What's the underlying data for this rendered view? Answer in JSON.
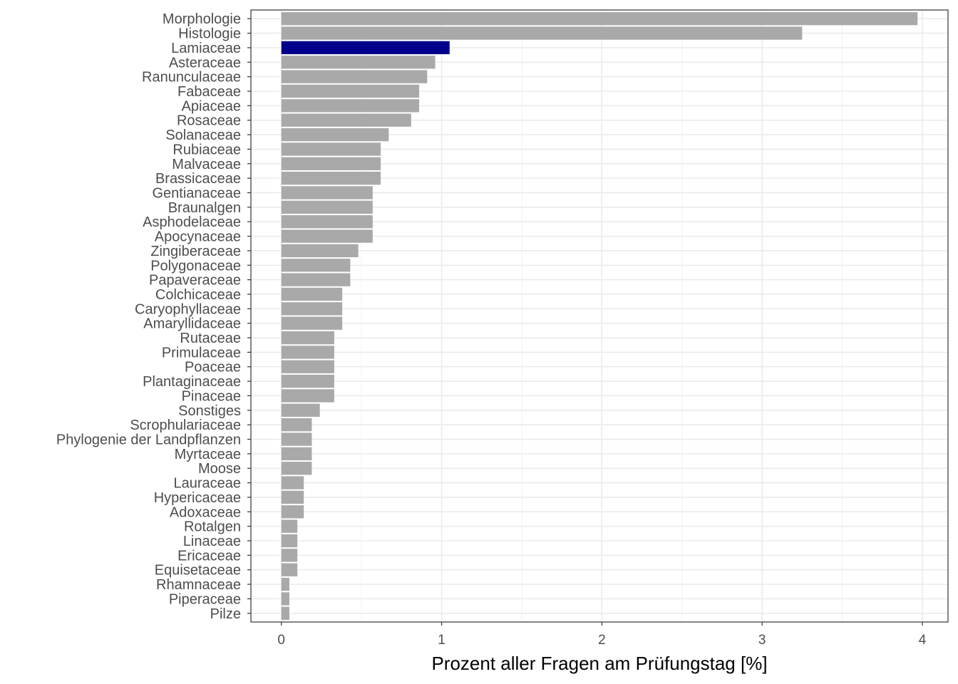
{
  "chart_data": {
    "type": "bar",
    "orientation": "horizontal",
    "xlabel": "Prozent aller Fragen am Prüfungstag [%]",
    "ylabel": "",
    "xlim": [
      -0.19,
      4.16
    ],
    "xticks": [
      0,
      1,
      2,
      3,
      4
    ],
    "grid": true,
    "bar_color": "#a9a9a9",
    "highlight_color": "#00008b",
    "highlight_category": "Lamiaceae",
    "categories": [
      "Morphologie",
      "Histologie",
      "Lamiaceae",
      "Asteraceae",
      "Ranunculaceae",
      "Fabaceae",
      "Apiaceae",
      "Rosaceae",
      "Solanaceae",
      "Rubiaceae",
      "Malvaceae",
      "Brassicaceae",
      "Gentianaceae",
      "Braunalgen",
      "Asphodelaceae",
      "Apocynaceae",
      "Zingiberaceae",
      "Polygonaceae",
      "Papaveraceae",
      "Colchicaceae",
      "Caryophyllaceae",
      "Amaryllidaceae",
      "Rutaceae",
      "Primulaceae",
      "Poaceae",
      "Plantaginaceae",
      "Pinaceae",
      "Sonstiges",
      "Scrophulariaceae",
      "Phylogenie der Landpflanzen",
      "Myrtaceae",
      "Moose",
      "Lauraceae",
      "Hypericaceae",
      "Adoxaceae",
      "Rotalgen",
      "Linaceae",
      "Ericaceae",
      "Equisetaceae",
      "Rhamnaceae",
      "Piperaceae",
      "Pilze"
    ],
    "values": [
      3.97,
      3.25,
      1.05,
      0.96,
      0.91,
      0.86,
      0.86,
      0.81,
      0.67,
      0.62,
      0.62,
      0.62,
      0.57,
      0.57,
      0.57,
      0.57,
      0.48,
      0.43,
      0.43,
      0.38,
      0.38,
      0.38,
      0.33,
      0.33,
      0.33,
      0.33,
      0.33,
      0.24,
      0.19,
      0.19,
      0.19,
      0.19,
      0.14,
      0.14,
      0.14,
      0.1,
      0.1,
      0.1,
      0.1,
      0.05,
      0.05,
      0.05
    ]
  }
}
